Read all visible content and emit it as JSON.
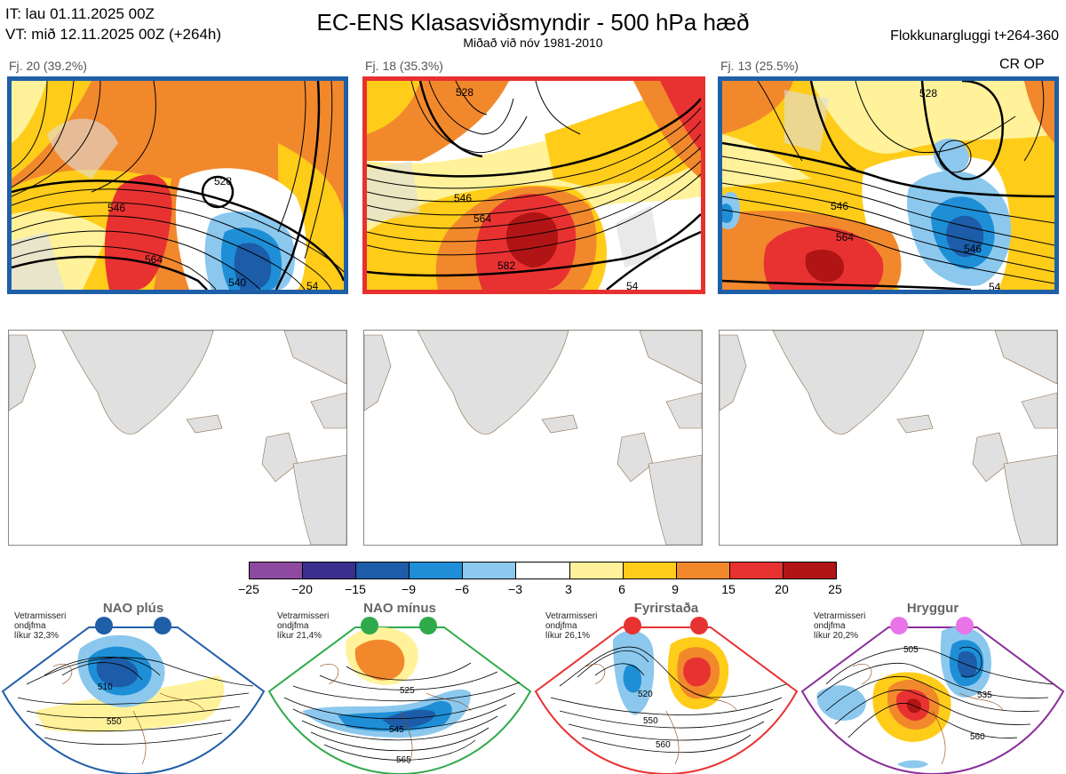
{
  "header": {
    "it_line": "IT: lau 01.11.2025 00Z",
    "vt_line": "VT: mið 12.11.2025 00Z  (+264h)",
    "title": "EC-ENS Klasasviðsmyndir - 500 hPa hæð",
    "subtitle": "Miðað við nóv 1981-2010",
    "window": "Flokkunargluggi t+264-360"
  },
  "clusters": [
    {
      "label": "Fj. 20 (39.2%)",
      "border_color": "#1f5fa8",
      "contours": [
        "528",
        "546",
        "564",
        "540",
        "54"
      ]
    },
    {
      "label": "Fj. 18 (35.3%)",
      "border_color": "#e83030",
      "contours": [
        "528",
        "546",
        "564",
        "582",
        "54"
      ]
    },
    {
      "label": "Fj. 13 (25.5%)",
      "border_color": "#1f5fa8",
      "contours": [
        "528",
        "546",
        "564",
        "546",
        "54"
      ]
    }
  ],
  "cr_op": "CR OP",
  "colorbar": {
    "ticks": [
      "−25",
      "−20",
      "−15",
      "−9",
      "−6",
      "−3",
      "3",
      "6",
      "9",
      "15",
      "20",
      "25"
    ],
    "colors": [
      "#8e4aa0",
      "#3a2f8f",
      "#1c5ca8",
      "#1e8fd6",
      "#8cc8ee",
      "#ffffff",
      "#fff29a",
      "#ffcc1a",
      "#f2882c",
      "#e83232",
      "#b01414"
    ]
  },
  "regimes": [
    {
      "title": "NAO plús",
      "caption": [
        "Vetrarmisseri",
        "ondjfma",
        "líkur 32,3%"
      ],
      "color": "#1f5fa8",
      "dot": "#1f5fa8",
      "contours": [
        "510",
        "550"
      ]
    },
    {
      "title": "NAO mínus",
      "caption": [
        "Vetrarmisseri",
        "ondjfma",
        "líkur 21,4%"
      ],
      "color": "#2faa4a",
      "dot": "#2faa4a",
      "contours": [
        "525",
        "545",
        "565"
      ]
    },
    {
      "title": "Fyrirstaða",
      "caption": [
        "Vetrarmisseri",
        "ondjfma",
        "líkur 26,1%"
      ],
      "color": "#e83232",
      "dot": "#e83232",
      "contours": [
        "520",
        "550",
        "560"
      ]
    },
    {
      "title": "Hryggur",
      "caption": [
        "Vetrarmisseri",
        "ondjfma",
        "líkur 20,2%"
      ],
      "color": "#8a2d9a",
      "dot": "#e874e8",
      "contours": [
        "505",
        "535",
        "560"
      ]
    }
  ]
}
